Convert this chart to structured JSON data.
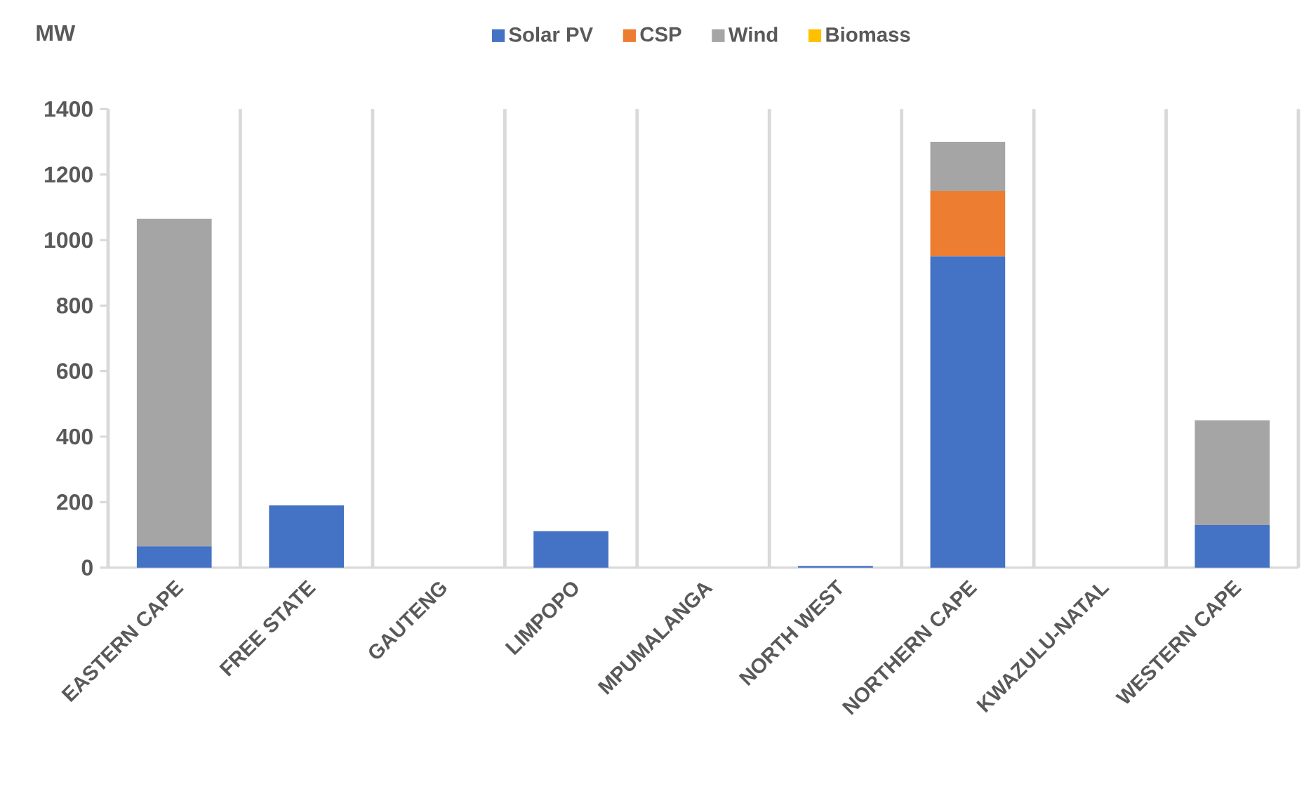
{
  "chart_data": {
    "type": "bar",
    "stacked": true,
    "ylabel": "MW",
    "categories": [
      "EASTERN CAPE",
      "FREE STATE",
      "GAUTENG",
      "LIMPOPO",
      "MPUMALANGA",
      "NORTH WEST",
      "NORTHERN CAPE",
      "KWAZULU-NATAL",
      "WESTERN CAPE"
    ],
    "series": [
      {
        "name": "Solar PV",
        "color": "#4472c4",
        "values": [
          65,
          190,
          0,
          111,
          0,
          5,
          950,
          0,
          130
        ]
      },
      {
        "name": "CSP",
        "color": "#ed7d31",
        "values": [
          0,
          0,
          0,
          0,
          0,
          0,
          200,
          0,
          0
        ]
      },
      {
        "name": "Wind",
        "color": "#a5a5a5",
        "values": [
          1000,
          0,
          0,
          0,
          0,
          0,
          150,
          0,
          320
        ]
      },
      {
        "name": "Biomass",
        "color": "#ffc000",
        "values": [
          0,
          0,
          0,
          0,
          0,
          0,
          0,
          0,
          0
        ]
      }
    ],
    "ylim": [
      0,
      1400
    ],
    "yticks": [
      0,
      200,
      400,
      600,
      800,
      1000,
      1200,
      1400
    ],
    "grid": "x",
    "legend": "top"
  }
}
